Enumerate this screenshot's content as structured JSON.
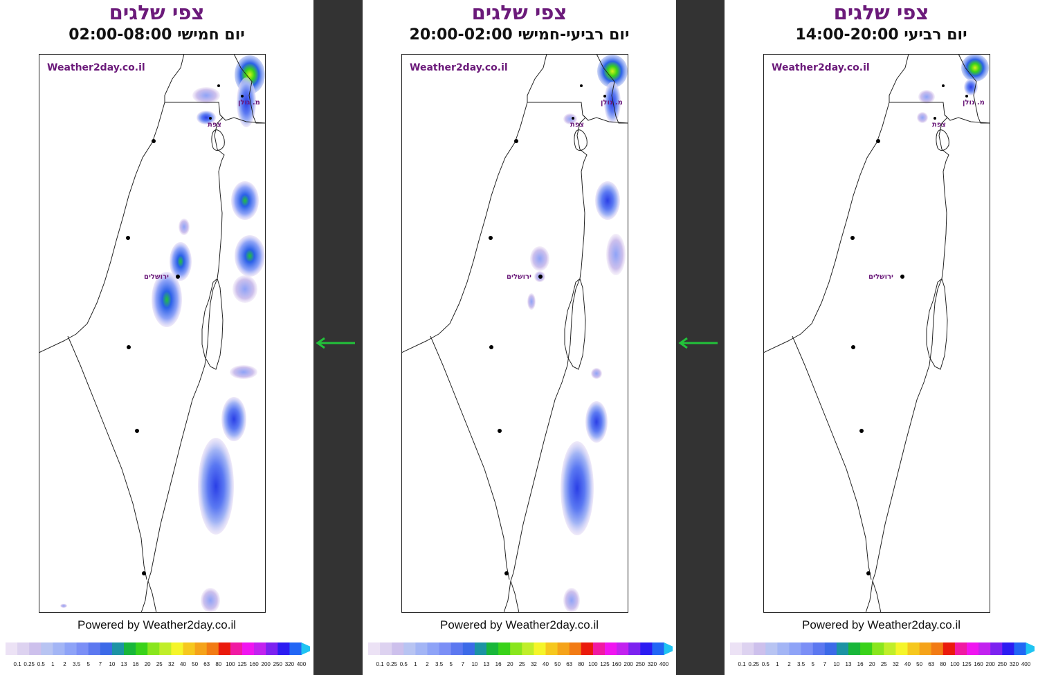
{
  "panels": [
    {
      "title": "צפי שלגים",
      "subtitle": "יום חמישי 02:00-08:00",
      "watermark": "Weather2day.co.il",
      "labels": {
        "golan": "מ. גולן",
        "safed": "צפת",
        "jerusalem": "ירושלים"
      },
      "powered": "Powered by Weather2day.co.il"
    },
    {
      "title": "צפי שלגים",
      "subtitle": "יום רביעי-חמישי 20:00-02:00",
      "watermark": "Weather2day.co.il",
      "labels": {
        "golan": "מ. גולן",
        "safed": "צפת",
        "jerusalem": "ירושלים"
      },
      "powered": "Powered by Weather2day.co.il"
    },
    {
      "title": "צפי שלגים",
      "subtitle": "יום רביעי 14:00-20:00",
      "watermark": "Weather2day.co.il",
      "labels": {
        "golan": "מ. גולן",
        "safed": "צפת",
        "jerusalem": "ירושלים"
      },
      "powered": "Powered by Weather2day.co.il"
    }
  ],
  "legend": {
    "values": [
      "0.1",
      "0.25",
      "0.5",
      "1",
      "2",
      "3.5",
      "5",
      "7",
      "10",
      "13",
      "16",
      "20",
      "25",
      "32",
      "40",
      "50",
      "63",
      "80",
      "100",
      "125",
      "160",
      "200",
      "250",
      "320",
      "400"
    ],
    "colors": [
      "#ece2f5",
      "#ddd2f0",
      "#cdc0ec",
      "#b8c4f2",
      "#a3b5f5",
      "#8ea3f7",
      "#7b8ff6",
      "#5c78f0",
      "#3c6ae8",
      "#1c93a4",
      "#18b63a",
      "#39d21a",
      "#89e61d",
      "#c0ee2a",
      "#f5f52a",
      "#f6c81e",
      "#f5a31a",
      "#f27b14",
      "#ea1a0c",
      "#f01aa2",
      "#f015f0",
      "#c222ef",
      "#7c22f0",
      "#2c1cf2",
      "#2266f5",
      "#1fc4f2"
    ]
  },
  "colors": {
    "title": "#6b1a7a",
    "watermark": "#6b1a7a",
    "arrow": "#22c23a",
    "divider": "#333333"
  }
}
